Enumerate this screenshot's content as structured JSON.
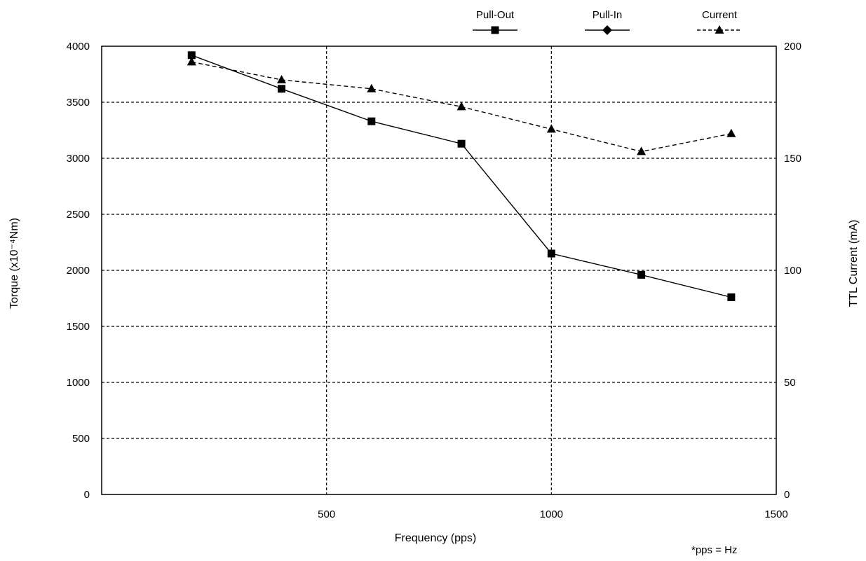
{
  "chart_data": {
    "type": "line",
    "x_axis": {
      "label": "Frequency (pps)",
      "range": [
        0,
        1500
      ],
      "ticks": [
        500,
        1000,
        1500
      ],
      "tick_labels": [
        "500",
        "1000",
        "1500"
      ]
    },
    "y_axis_left": {
      "label": "Torque (x10⁻⁴Nm)",
      "range": [
        0,
        4000
      ],
      "ticks": [
        0,
        500,
        1000,
        1500,
        2000,
        2500,
        3000,
        3500,
        4000
      ],
      "tick_labels": [
        "0",
        "500",
        "1000",
        "1500",
        "2000",
        "2500",
        "3000",
        "3500",
        "4000"
      ]
    },
    "y_axis_right": {
      "label": "TTL Current (mA)",
      "range": [
        0,
        200
      ],
      "ticks": [
        0,
        50,
        100,
        150,
        200
      ],
      "tick_labels": [
        "0",
        "50",
        "100",
        "150",
        "200"
      ]
    },
    "grid": true,
    "grid_style": "dashed",
    "legend_position": "top-right",
    "series": [
      {
        "name": "Pull-Out",
        "axis": "left",
        "marker": "square",
        "line_style": "solid",
        "color": "#000000",
        "x": [
          200,
          400,
          600,
          800,
          1000,
          1200,
          1400
        ],
        "y": [
          3920,
          3620,
          3330,
          3130,
          2150,
          1960,
          1760
        ]
      },
      {
        "name": "Pull-In",
        "axis": "left",
        "marker": "diamond",
        "line_style": "solid",
        "color": "#000000",
        "x": [],
        "y": []
      },
      {
        "name": "Current",
        "axis": "right",
        "marker": "triangle",
        "line_style": "dashed",
        "color": "#000000",
        "x": [
          200,
          400,
          600,
          800,
          1000,
          1200,
          1400
        ],
        "y": [
          193,
          185,
          181,
          173,
          163,
          153,
          161
        ]
      }
    ],
    "note": "*pps = Hz"
  }
}
